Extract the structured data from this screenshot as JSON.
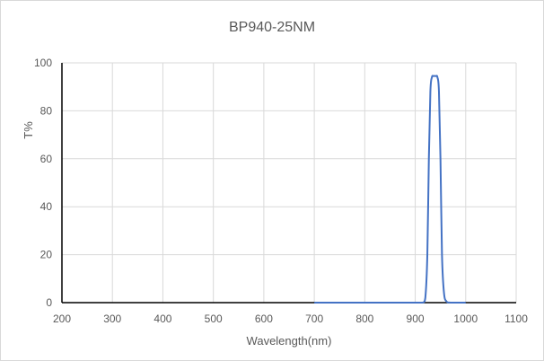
{
  "chart_data": {
    "type": "line",
    "title": "BP940-25NM",
    "xlabel": "Wavelength(nm)",
    "ylabel": "T%",
    "xlim": [
      200,
      1100
    ],
    "ylim": [
      0,
      100
    ],
    "xticks": [
      200,
      300,
      400,
      500,
      600,
      700,
      800,
      900,
      1000,
      1100
    ],
    "yticks": [
      0,
      20,
      40,
      60,
      80,
      100
    ],
    "grid": true,
    "legend": null,
    "series": [
      {
        "name": "BP940-25NM",
        "color": "#4472c4",
        "x": [
          700,
          800,
          900,
          915,
          920,
          924,
          927,
          930,
          933,
          936,
          938,
          941,
          944,
          947,
          950,
          953,
          957,
          962,
          970,
          1000
        ],
        "y": [
          0,
          0,
          0,
          0,
          2,
          20,
          60,
          88,
          94,
          94.5,
          94.5,
          94.5,
          94,
          88,
          60,
          20,
          4,
          0.5,
          0,
          0
        ]
      }
    ]
  }
}
